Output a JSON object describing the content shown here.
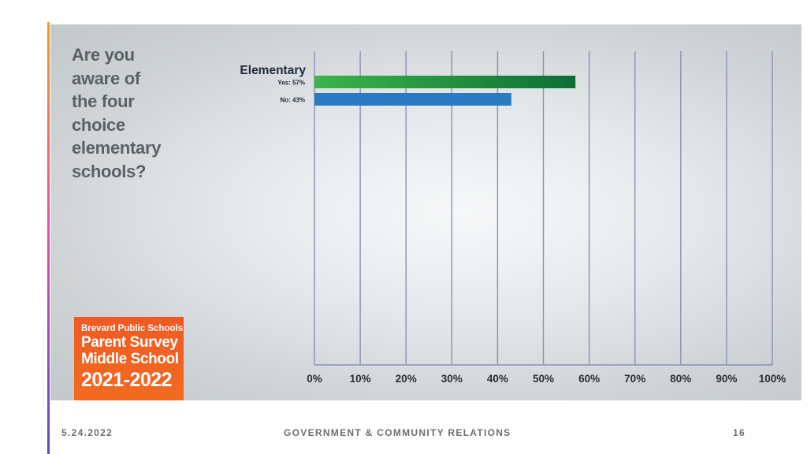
{
  "question_lines": [
    "Are you",
    "aware of",
    "the four",
    "choice",
    "elementary",
    "schools?"
  ],
  "logo": {
    "line1": "Brevard Public Schools",
    "line2": "Parent Survey",
    "line3": "Middle School",
    "line4": "2021-2022"
  },
  "footer": {
    "date": "5.24.2022",
    "center": "GOVERNMENT & COMMUNITY RELATIONS",
    "page": "16"
  },
  "colors": {
    "yes_bar_start": "#3cb54a",
    "yes_bar_end": "#0d6e35",
    "no_bar": "#2a7ac2",
    "gridline": "#8a8fb8",
    "logo_bg": "#f26b22"
  },
  "chart_data": {
    "type": "bar",
    "orientation": "horizontal",
    "group_label": "Elementary",
    "categories": [
      "Yes: 57%",
      "No: 43%"
    ],
    "values": [
      57,
      43
    ],
    "xlim": [
      0,
      100
    ],
    "x_ticks": [
      "0%",
      "10%",
      "20%",
      "30%",
      "40%",
      "50%",
      "60%",
      "70%",
      "80%",
      "90%",
      "100%"
    ],
    "grid": "vertical"
  }
}
